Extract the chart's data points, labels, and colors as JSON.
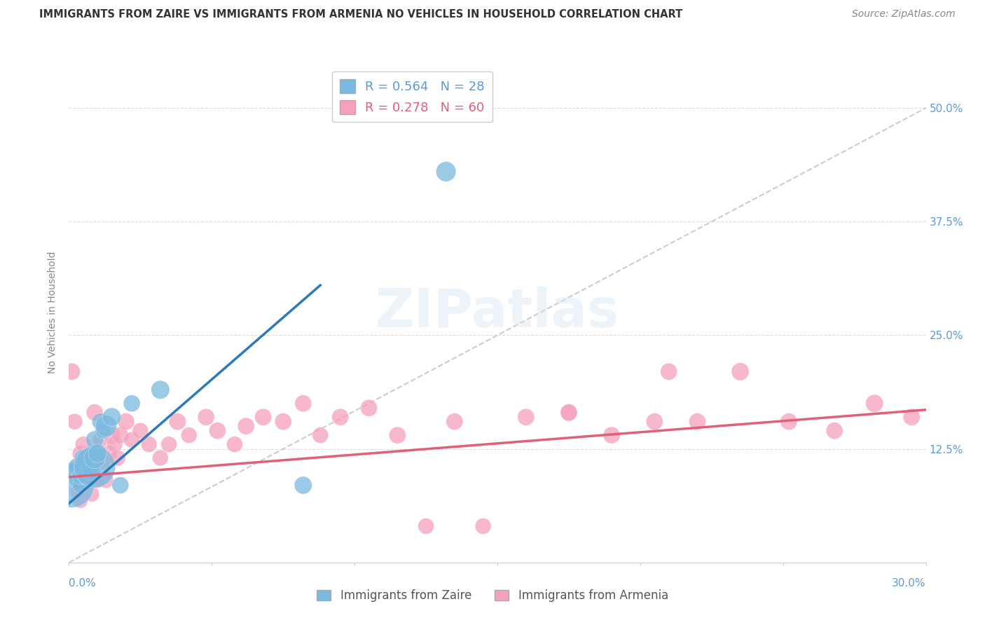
{
  "title": "IMMIGRANTS FROM ZAIRE VS IMMIGRANTS FROM ARMENIA NO VEHICLES IN HOUSEHOLD CORRELATION CHART",
  "source": "Source: ZipAtlas.com",
  "ylabel": "No Vehicles in Household",
  "xmin": 0.0,
  "xmax": 0.3,
  "ymin": 0.0,
  "ymax": 0.55,
  "right_ytick_vals": [
    0.0,
    0.125,
    0.25,
    0.375,
    0.5
  ],
  "right_yticklabels": [
    "",
    "12.5%",
    "25.0%",
    "37.5%",
    "50.0%"
  ],
  "legend_zaire": "R = 0.564   N = 28",
  "legend_armenia": "R = 0.278   N = 60",
  "zaire_color": "#7ab9e0",
  "armenia_color": "#f5a0bc",
  "zaire_line_color": "#2b7bba",
  "armenia_line_color": "#e0607a",
  "ref_line_color": "#c0c0c0",
  "watermark": "ZIPatlas",
  "zaire_line_x0": 0.0,
  "zaire_line_y0": 0.065,
  "zaire_line_x1": 0.088,
  "zaire_line_y1": 0.305,
  "armenia_line_x0": 0.0,
  "armenia_line_y0": 0.094,
  "armenia_line_x1": 0.3,
  "armenia_line_y1": 0.168,
  "ref_line_x0": 0.0,
  "ref_line_y0": 0.0,
  "ref_line_x1": 0.3,
  "ref_line_y1": 0.5,
  "zaire_points_x": [
    0.001,
    0.002,
    0.003,
    0.003,
    0.004,
    0.004,
    0.005,
    0.005,
    0.005,
    0.006,
    0.006,
    0.007,
    0.007,
    0.008,
    0.008,
    0.009,
    0.009,
    0.009,
    0.01,
    0.011,
    0.012,
    0.013,
    0.015,
    0.018,
    0.022,
    0.032,
    0.082,
    0.132
  ],
  "zaire_points_y": [
    0.085,
    0.1,
    0.09,
    0.105,
    0.085,
    0.095,
    0.1,
    0.105,
    0.115,
    0.095,
    0.115,
    0.095,
    0.1,
    0.1,
    0.12,
    0.105,
    0.115,
    0.135,
    0.12,
    0.155,
    0.145,
    0.15,
    0.16,
    0.085,
    0.175,
    0.19,
    0.085,
    0.43
  ],
  "zaire_sizes": [
    350,
    50,
    50,
    60,
    45,
    50,
    50,
    50,
    55,
    55,
    60,
    45,
    50,
    50,
    45,
    300,
    80,
    55,
    60,
    50,
    45,
    80,
    60,
    50,
    50,
    60,
    55,
    70
  ],
  "armenia_points_x": [
    0.001,
    0.002,
    0.003,
    0.003,
    0.004,
    0.004,
    0.005,
    0.005,
    0.006,
    0.006,
    0.007,
    0.007,
    0.008,
    0.008,
    0.009,
    0.009,
    0.01,
    0.01,
    0.011,
    0.012,
    0.013,
    0.014,
    0.015,
    0.016,
    0.017,
    0.018,
    0.02,
    0.022,
    0.025,
    0.028,
    0.032,
    0.035,
    0.038,
    0.042,
    0.048,
    0.052,
    0.058,
    0.062,
    0.068,
    0.075,
    0.082,
    0.088,
    0.095,
    0.105,
    0.115,
    0.125,
    0.135,
    0.145,
    0.16,
    0.175,
    0.19,
    0.205,
    0.22,
    0.235,
    0.252,
    0.268,
    0.282,
    0.295,
    0.21,
    0.175
  ],
  "armenia_points_y": [
    0.21,
    0.155,
    0.078,
    0.105,
    0.12,
    0.068,
    0.09,
    0.13,
    0.1,
    0.115,
    0.09,
    0.12,
    0.075,
    0.1,
    0.11,
    0.165,
    0.09,
    0.12,
    0.135,
    0.11,
    0.09,
    0.12,
    0.14,
    0.13,
    0.115,
    0.14,
    0.155,
    0.135,
    0.145,
    0.13,
    0.115,
    0.13,
    0.155,
    0.14,
    0.16,
    0.145,
    0.13,
    0.15,
    0.16,
    0.155,
    0.175,
    0.14,
    0.16,
    0.17,
    0.14,
    0.04,
    0.155,
    0.04,
    0.16,
    0.165,
    0.14,
    0.155,
    0.155,
    0.21,
    0.155,
    0.145,
    0.175,
    0.16,
    0.21,
    0.165
  ],
  "armenia_sizes": [
    50,
    45,
    40,
    40,
    45,
    40,
    40,
    45,
    40,
    45,
    40,
    45,
    40,
    40,
    45,
    50,
    40,
    45,
    45,
    40,
    40,
    45,
    50,
    45,
    45,
    50,
    50,
    45,
    45,
    45,
    45,
    45,
    50,
    45,
    50,
    50,
    45,
    50,
    50,
    50,
    50,
    45,
    50,
    50,
    50,
    45,
    50,
    45,
    50,
    50,
    50,
    50,
    50,
    55,
    50,
    50,
    55,
    50,
    50,
    50
  ]
}
